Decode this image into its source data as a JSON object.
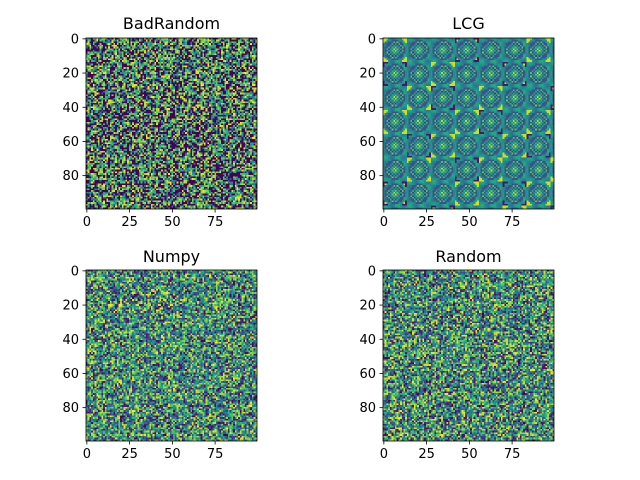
{
  "chart_data": [
    {
      "type": "heatmap",
      "title": "BadRandom",
      "pattern": "badrandom",
      "rows": 100,
      "cols": 100,
      "xticks": [
        0,
        25,
        50,
        75
      ],
      "yticks": [
        0,
        20,
        40,
        60,
        80
      ],
      "xlim": [
        -0.5,
        99.5
      ],
      "ylim": [
        99.5,
        -0.5
      ],
      "colormap": "viridis",
      "value_range": [
        0,
        1
      ]
    },
    {
      "type": "heatmap",
      "title": "LCG",
      "pattern": "lcg",
      "rows": 100,
      "cols": 100,
      "xticks": [
        0,
        25,
        50,
        75
      ],
      "yticks": [
        0,
        20,
        40,
        60,
        80
      ],
      "xlim": [
        -0.5,
        99.5
      ],
      "ylim": [
        99.5,
        -0.5
      ],
      "colormap": "viridis",
      "value_range": [
        0,
        1
      ]
    },
    {
      "type": "heatmap",
      "title": "Numpy",
      "pattern": "numpy",
      "rows": 100,
      "cols": 100,
      "xticks": [
        0,
        25,
        50,
        75
      ],
      "yticks": [
        0,
        20,
        40,
        60,
        80
      ],
      "xlim": [
        -0.5,
        99.5
      ],
      "ylim": [
        99.5,
        -0.5
      ],
      "colormap": "viridis",
      "value_range": [
        0,
        1
      ]
    },
    {
      "type": "heatmap",
      "title": "Random",
      "pattern": "random",
      "rows": 100,
      "cols": 100,
      "xticks": [
        0,
        25,
        50,
        75
      ],
      "yticks": [
        0,
        20,
        40,
        60,
        80
      ],
      "xlim": [
        -0.5,
        99.5
      ],
      "ylim": [
        99.5,
        -0.5
      ],
      "colormap": "viridis",
      "value_range": [
        0,
        1
      ]
    }
  ]
}
